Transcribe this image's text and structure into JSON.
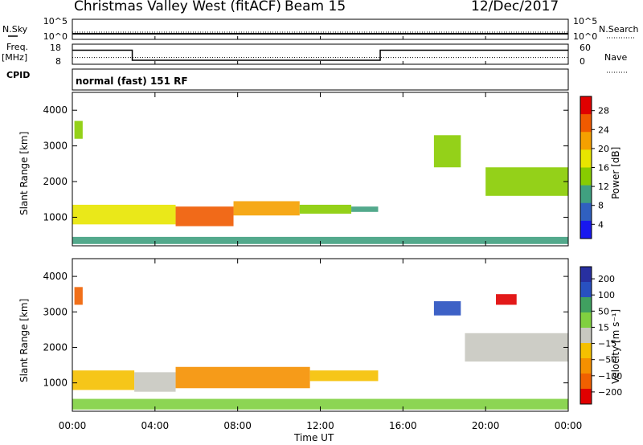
{
  "header": {
    "station": "Christmas Valley West (fitACF)",
    "beam": "Beam 15",
    "date": "12/Dec/2017"
  },
  "left_labels": {
    "nsky": "N.Sky",
    "freq": "Freq.",
    "mhz": "[MHz]",
    "cpid": "CPID"
  },
  "right_labels": {
    "nsearch": "N.Search",
    "nave": "Nave"
  },
  "cpid_text": "normal (fast) 151 RF",
  "power_panel": {
    "ylabel": "Slant Range [km]",
    "colorbar_label": "Power [dB]",
    "colorbar_ticks": [
      "28",
      "24",
      "20",
      "16",
      "12",
      "8",
      "4"
    ]
  },
  "velocity_panel": {
    "ylabel": "Slant Range [km]",
    "colorbar_label": "Velocity [m s⁻¹]",
    "colorbar_ticks": [
      "200",
      "100",
      "50",
      "15",
      "−15",
      "−50",
      "−100",
      "−200"
    ]
  },
  "x_ticks": [
    "00:00",
    "04:00",
    "08:00",
    "12:00",
    "16:00",
    "20:00",
    "00:00"
  ],
  "xlabel": "Time UT",
  "colors": {
    "power_scale": [
      "#e00000",
      "#f05a00",
      "#f5a000",
      "#e8e600",
      "#88cc00",
      "#40a080",
      "#3060c0",
      "#1818f0"
    ],
    "velocity_scale": [
      "#2830a0",
      "#2850c0",
      "#40a060",
      "#80d040",
      "#c8c8c0",
      "#f5c000",
      "#f59000",
      "#f06000",
      "#e00000"
    ]
  },
  "chart_data": [
    {
      "type": "line",
      "panel": "noise",
      "x": [
        0,
        24
      ],
      "series": [
        {
          "name": "N.Sky",
          "values": [
            10,
            10
          ]
        },
        {
          "name": "N.Search",
          "values": [
            10,
            10
          ]
        }
      ],
      "yticks_left": [
        "10^5",
        "10^0"
      ],
      "yticks_right": [
        "10^5",
        "10^0"
      ],
      "xlim": [
        0,
        24
      ]
    },
    {
      "type": "line",
      "panel": "frequency_nave",
      "x": [
        0,
        2.9,
        2.9,
        14.9,
        14.9,
        24
      ],
      "series": [
        {
          "name": "Freq.",
          "values": [
            15,
            15,
            10,
            10,
            15,
            15
          ]
        },
        {
          "name": "Nave",
          "values": [
            20,
            20,
            20,
            20,
            20,
            20
          ]
        }
      ],
      "yticks_left": [
        "18",
        "8"
      ],
      "yticks_right": [
        "60",
        "0"
      ],
      "xlim": [
        0,
        24
      ]
    },
    {
      "type": "heatmap",
      "panel": "power",
      "xlim": [
        0,
        24
      ],
      "ylim": [
        200,
        4500
      ],
      "yticks": [
        "1000",
        "2000",
        "3000",
        "4000"
      ],
      "clim": [
        0,
        30
      ],
      "regions": [
        {
          "t0": 0.0,
          "t1": 5.0,
          "r0": 800,
          "r1": 1350,
          "value": 18
        },
        {
          "t0": 5.0,
          "t1": 7.8,
          "r0": 750,
          "r1": 1300,
          "value": 26
        },
        {
          "t0": 7.8,
          "t1": 11.0,
          "r0": 1050,
          "r1": 1450,
          "value": 20
        },
        {
          "t0": 11.0,
          "t1": 13.5,
          "r0": 1100,
          "r1": 1350,
          "value": 14
        },
        {
          "t0": 13.5,
          "t1": 14.8,
          "r0": 1150,
          "r1": 1300,
          "value": 8
        },
        {
          "t0": 0.0,
          "t1": 24.0,
          "r0": 250,
          "r1": 450,
          "value": 10
        },
        {
          "t0": 17.5,
          "t1": 18.8,
          "r0": 2400,
          "r1": 3300,
          "value": 14
        },
        {
          "t0": 20.0,
          "t1": 24.0,
          "r0": 1600,
          "r1": 2400,
          "value": 14
        },
        {
          "t0": 0.1,
          "t1": 0.5,
          "r0": 3200,
          "r1": 3700,
          "value": 12
        }
      ]
    },
    {
      "type": "heatmap",
      "panel": "velocity",
      "xlim": [
        0,
        24
      ],
      "ylim": [
        200,
        4500
      ],
      "yticks": [
        "1000",
        "2000",
        "3000",
        "4000"
      ],
      "clim": [
        -200,
        200
      ],
      "regions": [
        {
          "t0": 0.0,
          "t1": 3.0,
          "r0": 800,
          "r1": 1350,
          "value": -30
        },
        {
          "t0": 3.0,
          "t1": 5.0,
          "r0": 750,
          "r1": 1300,
          "value": -20
        },
        {
          "t0": 5.0,
          "t1": 11.5,
          "r0": 850,
          "r1": 1450,
          "value": -80
        },
        {
          "t0": 11.5,
          "t1": 14.8,
          "r0": 1050,
          "r1": 1350,
          "value": -40
        },
        {
          "t0": 0.0,
          "t1": 24.0,
          "r0": 250,
          "r1": 550,
          "value": 30
        },
        {
          "t0": 17.5,
          "t1": 18.8,
          "r0": 2900,
          "r1": 3300,
          "value": 150
        },
        {
          "t0": 19.0,
          "t1": 24.0,
          "r0": 1600,
          "r1": 2400,
          "value": 0
        },
        {
          "t0": 0.1,
          "t1": 0.5,
          "r0": 3200,
          "r1": 3700,
          "value": -150
        },
        {
          "t0": 20.5,
          "t1": 21.5,
          "r0": 3200,
          "r1": 3500,
          "value": -180
        }
      ]
    }
  ]
}
